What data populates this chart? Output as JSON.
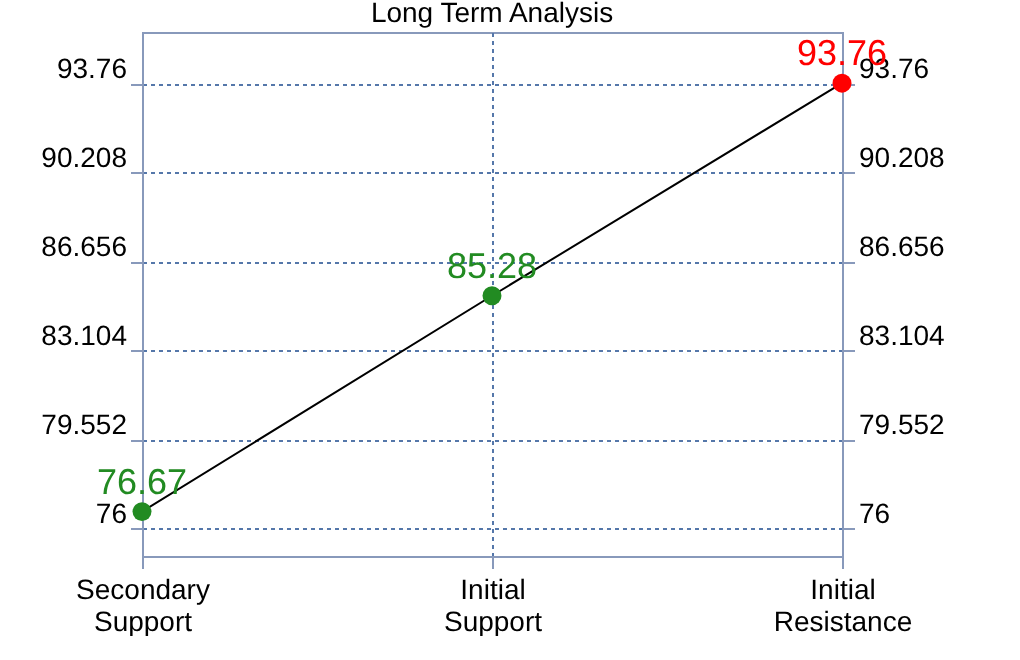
{
  "chart_data": {
    "type": "line",
    "title": "Long Term Analysis",
    "categories": [
      "Secondary Support",
      "Initial Support",
      "Initial Resistance"
    ],
    "series": [
      {
        "color": "#000000",
        "colors": [
          "#228b22",
          "#228b22",
          "#ff0000"
        ],
        "values": [
          76.67,
          85.28,
          93.76
        ]
      }
    ],
    "ylim": [
      74.9,
      95.8
    ],
    "yticks": [
      76,
      79.552,
      83.104,
      86.656,
      90.208,
      93.76
    ],
    "y2lim": [
      74.9,
      95.8
    ],
    "y2ticks": [
      76,
      79.552,
      83.104,
      86.656,
      90.208,
      93.76
    ],
    "grid": true,
    "marker": "circle",
    "data_labels": true
  }
}
